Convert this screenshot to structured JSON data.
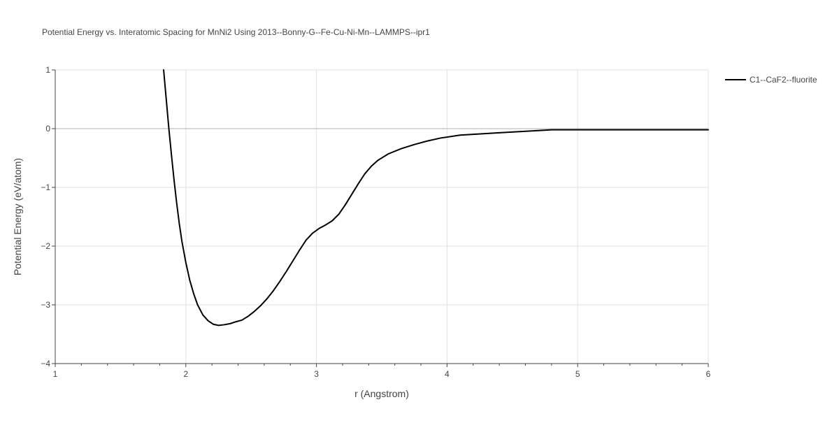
{
  "chart_data": {
    "type": "line",
    "title": "Potential Energy vs. Interatomic Spacing for MnNi2 Using 2013--Bonny-G--Fe-Cu-Ni-Mn--LAMMPS--ipr1",
    "xlabel": "r (Angstrom)",
    "ylabel": "Potential Energy (eV/atom)",
    "xlim": [
      1,
      6
    ],
    "ylim": [
      -4,
      1
    ],
    "xticks": [
      1,
      2,
      3,
      4,
      5,
      6
    ],
    "xtick_labels": [
      "1",
      "2",
      "3",
      "4",
      "5",
      "6"
    ],
    "yticks": [
      1,
      0,
      -1,
      -2,
      -3,
      -4
    ],
    "ytick_labels": [
      "1",
      "0",
      "−1",
      "−2",
      "−3",
      "−4"
    ],
    "grid": true,
    "legend_position": "top-right",
    "series": [
      {
        "name": "C1--CaF2--fluorite",
        "color": "#000000",
        "x": [
          1.83,
          1.85,
          1.87,
          1.89,
          1.91,
          1.93,
          1.95,
          1.97,
          2.0,
          2.03,
          2.06,
          2.09,
          2.13,
          2.17,
          2.21,
          2.25,
          2.29,
          2.34,
          2.38,
          2.43,
          2.48,
          2.52,
          2.57,
          2.62,
          2.67,
          2.72,
          2.77,
          2.82,
          2.87,
          2.92,
          2.97,
          3.02,
          3.07,
          3.12,
          3.17,
          3.22,
          3.27,
          3.32,
          3.37,
          3.42,
          3.47,
          3.55,
          3.65,
          3.75,
          3.85,
          3.95,
          4.1,
          4.4,
          4.8,
          5.2,
          5.6,
          6.0
        ],
        "y": [
          1.0,
          0.5,
          0.0,
          -0.45,
          -0.88,
          -1.27,
          -1.62,
          -1.92,
          -2.28,
          -2.58,
          -2.81,
          -3.0,
          -3.17,
          -3.27,
          -3.33,
          -3.35,
          -3.34,
          -3.32,
          -3.29,
          -3.26,
          -3.19,
          -3.12,
          -3.02,
          -2.9,
          -2.76,
          -2.6,
          -2.43,
          -2.25,
          -2.07,
          -1.9,
          -1.78,
          -1.7,
          -1.64,
          -1.57,
          -1.46,
          -1.3,
          -1.12,
          -0.94,
          -0.77,
          -0.64,
          -0.54,
          -0.43,
          -0.34,
          -0.27,
          -0.21,
          -0.16,
          -0.11,
          -0.07,
          -0.02,
          -0.02,
          -0.02,
          -0.02
        ]
      }
    ]
  }
}
